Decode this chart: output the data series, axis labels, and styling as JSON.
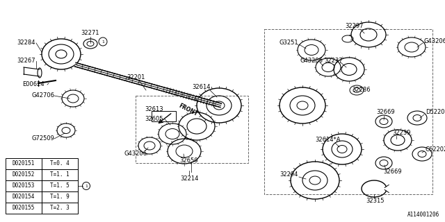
{
  "bg_color": "#ffffff",
  "lc": "#000000",
  "part_number_ref": "A114001206",
  "table_data": [
    [
      "D020151",
      "T=0. 4"
    ],
    [
      "D020152",
      "T=1. 1"
    ],
    [
      "D020153",
      "T=1. 5"
    ],
    [
      "D020154",
      "T=1. 9"
    ],
    [
      "D020155",
      "T=2. 3"
    ]
  ]
}
